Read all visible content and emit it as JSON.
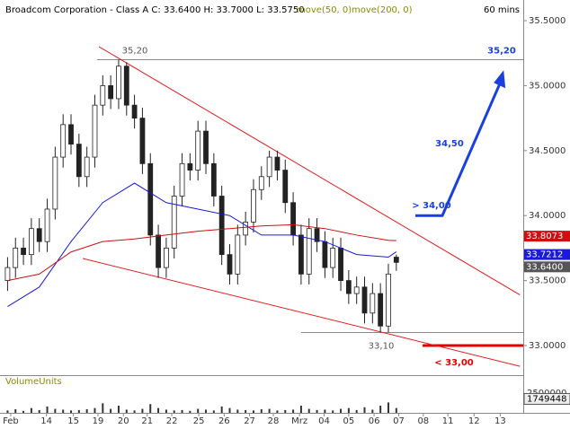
{
  "chart_data": {
    "type": "candlestick",
    "title": "Broadcom Corporation - Class A C: 33.6400 H: 33.7000 L: 33.5750",
    "timeframe": "60 mins",
    "xlim": [
      -0.5,
      65
    ],
    "ylim": [
      32.772,
      35.604
    ],
    "yticks": [
      {
        "value": 33,
        "label": "33.0000"
      },
      {
        "value": 33.5,
        "label": "33.5000"
      },
      {
        "value": 34,
        "label": "34.0000"
      },
      {
        "value": 34.5,
        "label": "34.5000"
      },
      {
        "value": 35,
        "label": "35.0000"
      },
      {
        "value": 35.5,
        "label": "35.5000"
      }
    ],
    "xticks": [
      {
        "value": 0.4,
        "label": "Feb"
      },
      {
        "value": 4.9,
        "label": "14"
      },
      {
        "value": 8.3,
        "label": "15"
      },
      {
        "value": 11.4,
        "label": "19"
      },
      {
        "value": 14.6,
        "label": "20"
      },
      {
        "value": 17.6,
        "label": "21"
      },
      {
        "value": 20.7,
        "label": "22"
      },
      {
        "value": 24.1,
        "label": "25"
      },
      {
        "value": 27.3,
        "label": "26"
      },
      {
        "value": 30.5,
        "label": "27"
      },
      {
        "value": 33.5,
        "label": "28"
      },
      {
        "value": 36.8,
        "label": "Mrz"
      },
      {
        "value": 39.9,
        "label": "04"
      },
      {
        "value": 43.0,
        "label": "05"
      },
      {
        "value": 46.2,
        "label": "06"
      },
      {
        "value": 49.3,
        "label": "07"
      },
      {
        "value": 52.4,
        "label": "08"
      },
      {
        "value": 55.5,
        "label": "11"
      },
      {
        "value": 58.8,
        "label": "12"
      },
      {
        "value": 62.1,
        "label": "13"
      }
    ],
    "candles": {
      "open": [
        33.5,
        33.6,
        33.75,
        33.7,
        33.9,
        33.8,
        34.05,
        34.45,
        34.7,
        34.55,
        34.3,
        34.45,
        34.85,
        35.0,
        34.9,
        35.15,
        34.85,
        34.75,
        34.4,
        33.85,
        33.6,
        33.75,
        34.15,
        34.4,
        34.35,
        34.65,
        34.4,
        34.15,
        33.7,
        33.55,
        33.85,
        33.95,
        34.2,
        34.3,
        34.45,
        34.35,
        34.1,
        33.85,
        33.55,
        33.9,
        33.8,
        33.6,
        33.75,
        33.5,
        33.4,
        33.45,
        33.25,
        33.4,
        33.15,
        33.68
      ],
      "high": [
        33.68,
        33.83,
        33.83,
        33.98,
        33.98,
        34.13,
        34.53,
        34.78,
        34.78,
        34.63,
        34.53,
        34.93,
        35.08,
        35.08,
        35.2,
        35.18,
        34.93,
        34.83,
        34.48,
        33.93,
        33.83,
        34.23,
        34.48,
        34.48,
        34.73,
        34.73,
        34.48,
        34.23,
        33.78,
        33.93,
        34.03,
        34.28,
        34.38,
        34.5,
        34.5,
        34.43,
        34.18,
        33.93,
        33.98,
        33.98,
        33.88,
        33.83,
        33.83,
        33.58,
        33.53,
        33.53,
        33.48,
        33.48,
        33.63,
        33.7
      ],
      "low": [
        33.42,
        33.52,
        33.62,
        33.62,
        33.72,
        33.72,
        33.97,
        34.37,
        34.47,
        34.22,
        34.22,
        34.37,
        34.77,
        34.82,
        34.82,
        34.77,
        34.67,
        34.32,
        33.77,
        33.52,
        33.52,
        33.67,
        34.07,
        34.27,
        34.27,
        34.32,
        34.07,
        33.62,
        33.47,
        33.47,
        33.77,
        33.87,
        34.12,
        34.22,
        34.27,
        34.02,
        33.77,
        33.47,
        33.47,
        33.72,
        33.52,
        33.52,
        33.42,
        33.32,
        33.32,
        33.17,
        33.17,
        33.1,
        33.1,
        33.575
      ],
      "close": [
        33.6,
        33.75,
        33.7,
        33.9,
        33.8,
        34.05,
        34.45,
        34.7,
        34.55,
        34.3,
        34.45,
        34.85,
        35.0,
        34.9,
        35.15,
        34.85,
        34.75,
        34.4,
        33.85,
        33.6,
        33.75,
        34.15,
        34.4,
        34.35,
        34.65,
        34.4,
        34.15,
        33.7,
        33.55,
        33.85,
        33.95,
        34.2,
        34.3,
        34.45,
        34.35,
        34.1,
        33.85,
        33.55,
        33.9,
        33.8,
        33.6,
        33.75,
        33.5,
        33.4,
        33.45,
        33.25,
        33.4,
        33.15,
        33.55,
        33.64
      ],
      "close_label": "33.6400"
    },
    "series": [
      {
        "name": "move(50, 0)",
        "color": "#1a1ad8",
        "x": [
          0,
          4,
          8,
          12,
          16,
          20,
          24,
          28,
          32,
          36,
          40,
          44,
          48,
          49
        ],
        "values": [
          33.3,
          33.45,
          33.8,
          34.1,
          34.25,
          34.1,
          34.05,
          34.0,
          33.85,
          33.85,
          33.8,
          33.7,
          33.68,
          33.7212
        ]
      },
      {
        "name": "move(200, 0)",
        "color": "#cc1010",
        "x": [
          0,
          4,
          8,
          12,
          16,
          20,
          24,
          28,
          32,
          36,
          40,
          44,
          48,
          49
        ],
        "values": [
          33.5,
          33.55,
          33.72,
          33.8,
          33.82,
          33.85,
          33.88,
          33.9,
          33.92,
          33.93,
          33.9,
          33.85,
          33.81,
          33.8073
        ]
      }
    ],
    "legend_color": "#8a8a00",
    "volume": {
      "label": "VolumeUnits",
      "ylim": [
        0,
        4500000
      ],
      "tick": 2500000,
      "last_value": 1749448,
      "values": [
        300000,
        450000,
        250000,
        600000,
        350000,
        800000,
        500000,
        400000,
        300000,
        350000,
        450000,
        600000,
        1200000,
        500000,
        900000,
        400000,
        300000,
        500000,
        1100000,
        600000,
        400000,
        300000,
        350000,
        250000,
        500000,
        400000,
        300000,
        800000,
        600000,
        400000,
        350000,
        300000,
        450000,
        500000,
        300000,
        350000,
        400000,
        900000,
        500000,
        350000,
        400000,
        300000,
        500000,
        600000,
        350000,
        700000,
        400000,
        900000,
        1300000,
        600000
      ]
    },
    "lines": [
      {
        "color": "#e02020",
        "points": [
          [
            11.52,
            35.3
          ],
          [
            64.58,
            33.39
          ]
        ]
      },
      {
        "color": "#e02020",
        "points": [
          [
            9.48,
            33.67
          ],
          [
            64.58,
            32.84
          ]
        ]
      }
    ],
    "levels": [
      {
        "value": 35.2,
        "from": 11.3,
        "color": "#888888"
      },
      {
        "value": 33.1,
        "from": 37.0,
        "color": "#888888"
      },
      {
        "value": 33.0,
        "from": 52.3,
        "color": "#e00000"
      }
    ],
    "arrow": {
      "color": "#1a3fe0",
      "points": [
        [
          51.4,
          34.0
        ],
        [
          54.8,
          34.0
        ],
        [
          62.3,
          35.05
        ]
      ]
    },
    "annotations": [
      {
        "value": 35.2,
        "label": "35,20",
        "color": "#555555"
      },
      {
        "value": 35.2,
        "label": "35,20",
        "color": "#1a3fe0"
      },
      {
        "value": 34.5,
        "label": "34,50",
        "color": "#1a3fe0"
      },
      {
        "value": 34.0,
        "label": "> 34,00",
        "color": "#1a3fe0"
      },
      {
        "value": 33.1,
        "label": "33,10",
        "color": "#555555"
      },
      {
        "value": 33.0,
        "label": "< 33,00",
        "color": "#e00000"
      }
    ]
  }
}
